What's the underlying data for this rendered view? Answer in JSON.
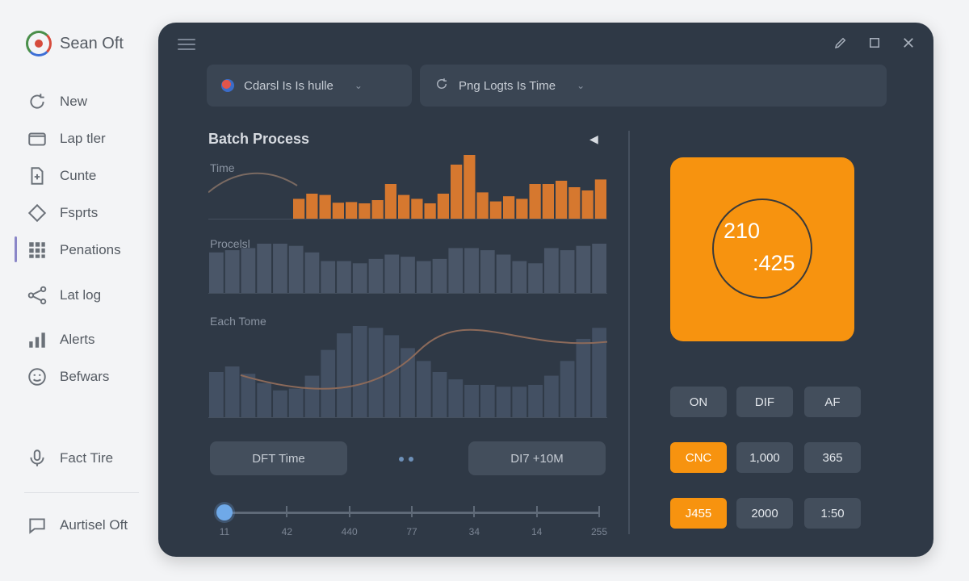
{
  "app": {
    "name": "Sean Oft"
  },
  "sidebar": {
    "items": [
      {
        "label": "New",
        "icon": "refresh-icon"
      },
      {
        "label": "Lap tler",
        "icon": "folder-icon"
      },
      {
        "label": "Cunte",
        "icon": "document-icon"
      },
      {
        "label": "Fsprts",
        "icon": "diamond-icon"
      },
      {
        "label": "Penations",
        "icon": "grid-icon",
        "active": true
      },
      {
        "label": "Lat log",
        "icon": "share-icon"
      },
      {
        "label": "Alerts",
        "icon": "bar-chart-icon"
      },
      {
        "label": "Befwars",
        "icon": "globe-icon"
      },
      {
        "label": "Fact Tire",
        "icon": "microphone-icon"
      },
      {
        "label": "Aurtisel Oft",
        "icon": "chat-icon"
      }
    ]
  },
  "toolbar": {
    "dropdown1": "Cdarsl Is Is hulle",
    "dropdown2": "Png Logts Is Time"
  },
  "section": {
    "title": "Batch Process"
  },
  "charts": {
    "time": {
      "label": "Time",
      "bars": [
        32,
        40,
        38,
        26,
        27,
        25,
        30,
        55,
        38,
        32,
        25,
        40,
        85,
        100,
        42,
        28,
        36,
        32,
        55,
        55,
        60,
        50,
        45,
        62
      ],
      "color": "#d6782f"
    },
    "process": {
      "label": "Procelsl",
      "bars": [
        38,
        40,
        42,
        46,
        46,
        44,
        38,
        30,
        30,
        28,
        32,
        36,
        34,
        30,
        32,
        42,
        42,
        40,
        36,
        30,
        28,
        42,
        40,
        44,
        46
      ]
    },
    "each_time": {
      "label": "Each Tome",
      "bars": [
        50,
        56,
        48,
        38,
        30,
        32,
        46,
        74,
        92,
        100,
        98,
        90,
        76,
        62,
        50,
        42,
        36,
        36,
        34,
        34,
        36,
        46,
        62,
        86,
        98
      ]
    }
  },
  "buttons": {
    "left": "DFT Time",
    "right": "DI7 +10M"
  },
  "slider": {
    "ticks": [
      "11",
      "42",
      "440",
      "77",
      "34",
      "14",
      "255"
    ],
    "value_index": 0
  },
  "gauge": {
    "value1": "210",
    "value2": ":425",
    "color": "#f7930f"
  },
  "keypad": [
    [
      {
        "label": "ON",
        "accent": false
      },
      {
        "label": "DIF",
        "accent": false
      },
      {
        "label": "AF",
        "accent": false
      }
    ],
    [
      {
        "label": "CNC",
        "accent": true
      },
      {
        "label": "1,000",
        "accent": false
      },
      {
        "label": "365",
        "accent": false
      }
    ],
    [
      {
        "label": "J455",
        "accent": true
      },
      {
        "label": "2000",
        "accent": false
      },
      {
        "label": "1:50",
        "accent": false
      }
    ]
  ]
}
